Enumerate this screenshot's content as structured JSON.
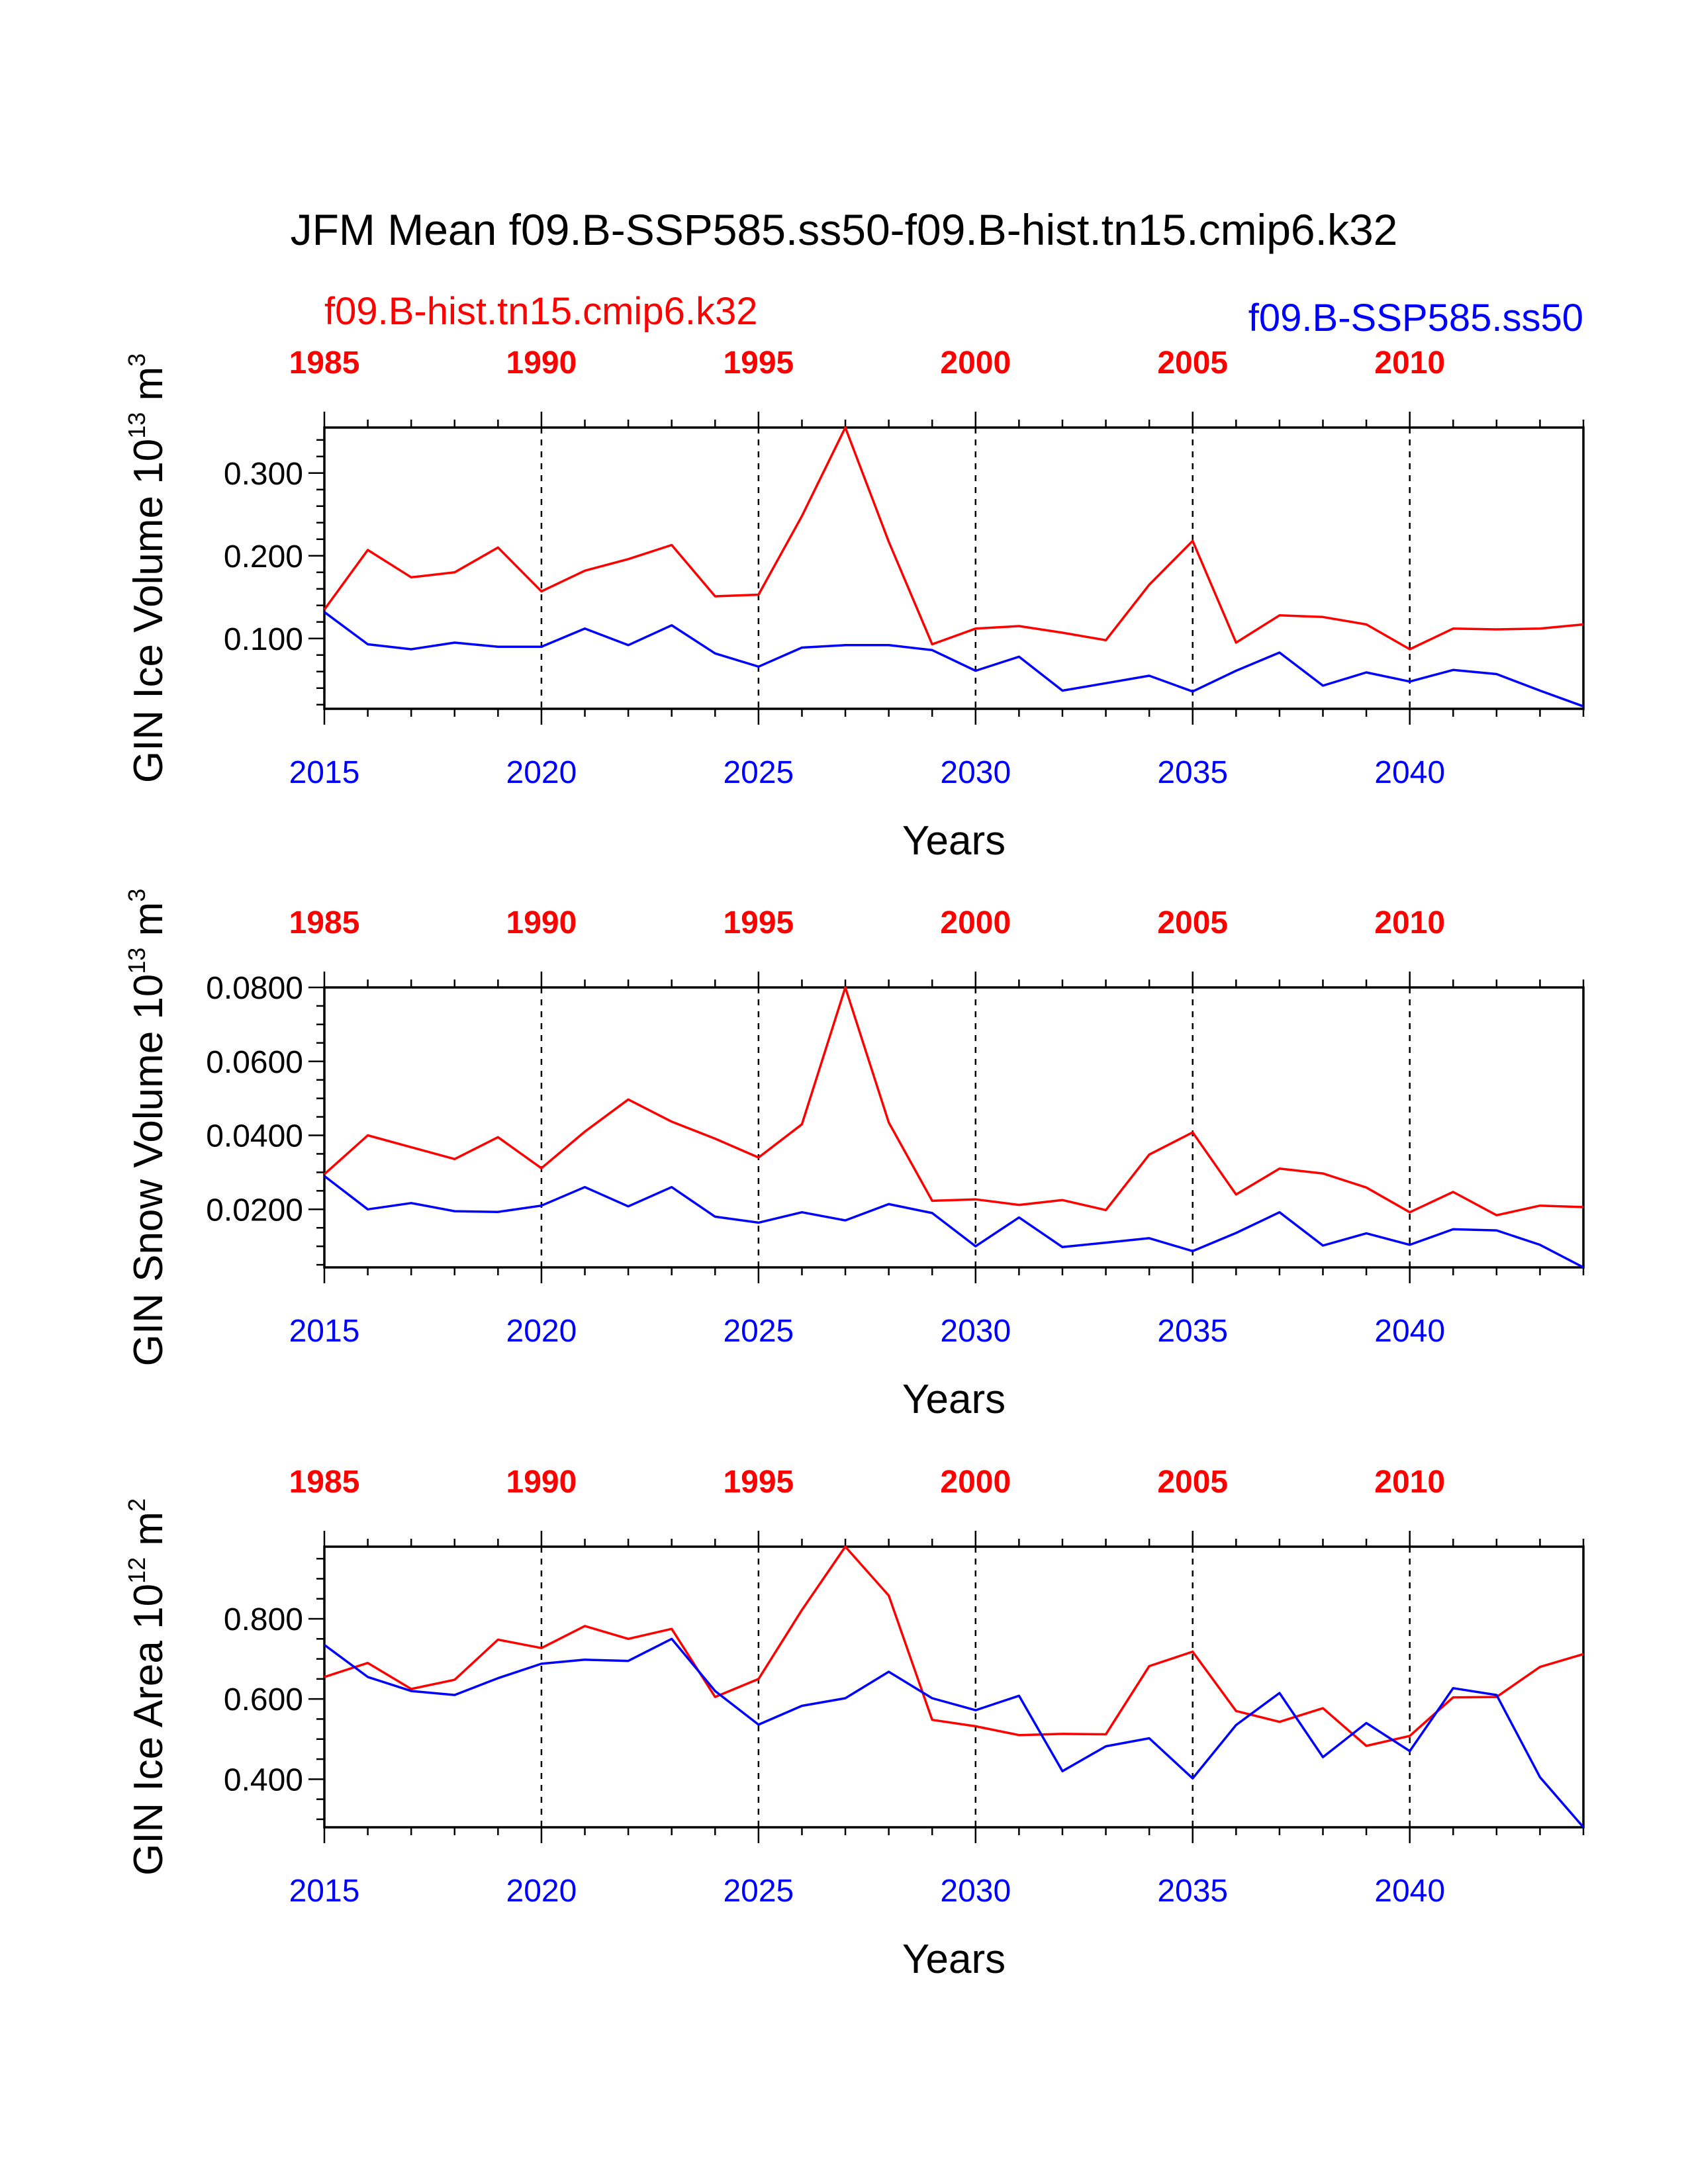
{
  "title": "JFM Mean f09.B-SSP585.ss50-f09.B-hist.tn15.cmip6.k32",
  "legend": {
    "hist_label": "f09.B-hist.tn15.cmip6.k32",
    "ssp_label": "f09.B-SSP585.ss50",
    "hist_color": "#ff0000",
    "ssp_color": "#0000ff"
  },
  "chart_data": [
    {
      "type": "line",
      "ylabel_main": "GIN Ice Volume 10",
      "ylabel_exp": "13",
      "ylabel_unit": " m",
      "ylabel_unit_exp": "3",
      "xlabel": "Years",
      "ylim": [
        0.015,
        0.355
      ],
      "yticks": [
        0.1,
        0.2,
        0.3
      ],
      "ytick_labels": [
        "0.100",
        "0.200",
        "0.300"
      ],
      "minor_step": 0.02,
      "x_bottom": [
        2015,
        2016,
        2017,
        2018,
        2019,
        2020,
        2021,
        2022,
        2023,
        2024,
        2025,
        2026,
        2027,
        2028,
        2029,
        2030,
        2031,
        2032,
        2033,
        2034,
        2035,
        2036,
        2037,
        2038,
        2039,
        2040,
        2041,
        2042,
        2043,
        2044
      ],
      "bottom_ticks": [
        2015,
        2020,
        2025,
        2030,
        2035,
        2040
      ],
      "bottom_tick_labels": [
        "2015",
        "2020",
        "2025",
        "2030",
        "2035",
        "2040"
      ],
      "top_tick_labels": [
        "1985",
        "1990",
        "1995",
        "2000",
        "2005",
        "2010"
      ],
      "series": [
        {
          "name": "f09.B-hist.tn15.cmip6.k32",
          "color": "#ff0000",
          "values": [
            0.135,
            0.207,
            0.174,
            0.18,
            0.21,
            0.157,
            0.182,
            0.196,
            0.213,
            0.151,
            0.153,
            0.248,
            0.355,
            0.217,
            0.093,
            0.112,
            0.115,
            0.107,
            0.098,
            0.165,
            0.218,
            0.095,
            0.128,
            0.126,
            0.117,
            0.087,
            0.112,
            0.111,
            0.112,
            0.117
          ]
        },
        {
          "name": "f09.B-SSP585.ss50",
          "color": "#0000ff",
          "values": [
            0.132,
            0.093,
            0.087,
            0.095,
            0.09,
            0.09,
            0.112,
            0.092,
            0.116,
            0.082,
            0.066,
            0.089,
            0.092,
            0.092,
            0.086,
            0.061,
            0.078,
            0.037,
            0.046,
            0.055,
            0.036,
            0.061,
            0.083,
            0.043,
            0.059,
            0.048,
            0.062,
            0.057,
            0.037,
            0.018
          ]
        }
      ]
    },
    {
      "type": "line",
      "ylabel_main": "GIN Snow Volume 10",
      "ylabel_exp": "13",
      "ylabel_unit": " m",
      "ylabel_unit_exp": "3",
      "xlabel": "Years",
      "ylim": [
        0.0043,
        0.08
      ],
      "yticks": [
        0.02,
        0.04,
        0.06,
        0.08
      ],
      "ytick_labels": [
        "0.0200",
        "0.0400",
        "0.0600",
        "0.0800"
      ],
      "minor_step": 0.005,
      "x_bottom": [
        2015,
        2016,
        2017,
        2018,
        2019,
        2020,
        2021,
        2022,
        2023,
        2024,
        2025,
        2026,
        2027,
        2028,
        2029,
        2030,
        2031,
        2032,
        2033,
        2034,
        2035,
        2036,
        2037,
        2038,
        2039,
        2040,
        2041,
        2042,
        2043,
        2044
      ],
      "bottom_ticks": [
        2015,
        2020,
        2025,
        2030,
        2035,
        2040
      ],
      "bottom_tick_labels": [
        "2015",
        "2020",
        "2025",
        "2030",
        "2035",
        "2040"
      ],
      "top_tick_labels": [
        "1985",
        "1990",
        "1995",
        "2000",
        "2005",
        "2010"
      ],
      "series": [
        {
          "name": "f09.B-hist.tn15.cmip6.k32",
          "color": "#ff0000",
          "values": [
            0.0295,
            0.04,
            0.0368,
            0.0336,
            0.0395,
            0.0311,
            0.041,
            0.0497,
            0.0437,
            0.0391,
            0.034,
            0.043,
            0.08,
            0.0435,
            0.0223,
            0.0227,
            0.0212,
            0.0225,
            0.0198,
            0.0348,
            0.0408,
            0.024,
            0.031,
            0.0297,
            0.0259,
            0.0192,
            0.0247,
            0.0184,
            0.021,
            0.0206
          ]
        },
        {
          "name": "f09.B-SSP585.ss50",
          "color": "#0000ff",
          "values": [
            0.029,
            0.02,
            0.0217,
            0.0195,
            0.0193,
            0.021,
            0.026,
            0.0208,
            0.026,
            0.018,
            0.0164,
            0.0192,
            0.017,
            0.0214,
            0.019,
            0.01,
            0.0178,
            0.0098,
            0.011,
            0.0122,
            0.0087,
            0.0136,
            0.0192,
            0.0102,
            0.0135,
            0.0104,
            0.0146,
            0.0143,
            0.0104,
            0.0043
          ]
        }
      ]
    },
    {
      "type": "line",
      "ylabel_main": "GIN Ice Area 10",
      "ylabel_exp": "12",
      "ylabel_unit": " m",
      "ylabel_unit_exp": "2",
      "xlabel": "Years",
      "ylim": [
        0.28,
        0.98
      ],
      "yticks": [
        0.4,
        0.6,
        0.8
      ],
      "ytick_labels": [
        "0.400",
        "0.600",
        "0.800"
      ],
      "minor_step": 0.05,
      "x_bottom": [
        2015,
        2016,
        2017,
        2018,
        2019,
        2020,
        2021,
        2022,
        2023,
        2024,
        2025,
        2026,
        2027,
        2028,
        2029,
        2030,
        2031,
        2032,
        2033,
        2034,
        2035,
        2036,
        2037,
        2038,
        2039,
        2040,
        2041,
        2042,
        2043,
        2044
      ],
      "bottom_ticks": [
        2015,
        2020,
        2025,
        2030,
        2035,
        2040
      ],
      "bottom_tick_labels": [
        "2015",
        "2020",
        "2025",
        "2030",
        "2035",
        "2040"
      ],
      "top_tick_labels": [
        "1985",
        "1990",
        "1995",
        "2000",
        "2005",
        "2010"
      ],
      "series": [
        {
          "name": "f09.B-hist.tn15.cmip6.k32",
          "color": "#ff0000",
          "values": [
            0.655,
            0.69,
            0.625,
            0.648,
            0.748,
            0.727,
            0.782,
            0.75,
            0.775,
            0.605,
            0.65,
            0.822,
            0.98,
            0.858,
            0.548,
            0.532,
            0.51,
            0.513,
            0.512,
            0.682,
            0.718,
            0.57,
            0.543,
            0.577,
            0.483,
            0.508,
            0.604,
            0.605,
            0.68,
            0.712
          ]
        },
        {
          "name": "f09.B-SSP585.ss50",
          "color": "#0000ff",
          "values": [
            0.735,
            0.655,
            0.62,
            0.61,
            0.652,
            0.688,
            0.698,
            0.695,
            0.75,
            0.62,
            0.536,
            0.583,
            0.602,
            0.668,
            0.602,
            0.572,
            0.608,
            0.42,
            0.482,
            0.502,
            0.402,
            0.535,
            0.615,
            0.455,
            0.54,
            0.47,
            0.627,
            0.61,
            0.405,
            0.28
          ]
        }
      ]
    }
  ]
}
